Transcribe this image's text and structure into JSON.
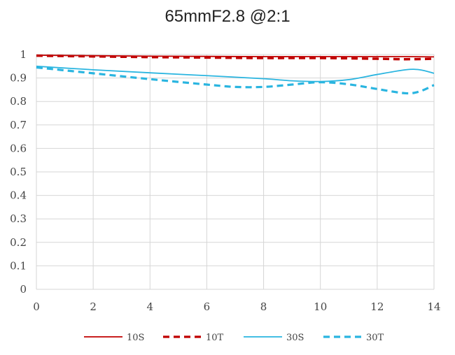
{
  "chart_data": {
    "type": "line",
    "title": "65mmF2.8 @2:1",
    "xlabel": "",
    "ylabel": "",
    "xlim": [
      0,
      14
    ],
    "ylim": [
      0,
      1
    ],
    "xticks": [
      "0",
      "2",
      "4",
      "6",
      "8",
      "10",
      "12",
      "14"
    ],
    "yticks": [
      "0",
      "0.1",
      "0.2",
      "0.3",
      "0.4",
      "0.5",
      "0.6",
      "0.7",
      "0.8",
      "0.9",
      "1"
    ],
    "grid": true,
    "legend_position": "bottom",
    "series": [
      {
        "name": "10S",
        "color": "#c00000",
        "style": "solid",
        "x": [
          0,
          2,
          4,
          6,
          8,
          10,
          12,
          13,
          14
        ],
        "y": [
          0.997,
          0.995,
          0.993,
          0.992,
          0.991,
          0.991,
          0.991,
          0.991,
          0.99
        ]
      },
      {
        "name": "10T",
        "color": "#c00000",
        "style": "dashed",
        "x": [
          0,
          2,
          4,
          6,
          8,
          10,
          12,
          13,
          14
        ],
        "y": [
          0.995,
          0.992,
          0.989,
          0.987,
          0.985,
          0.985,
          0.982,
          0.98,
          0.982
        ]
      },
      {
        "name": "30S",
        "color": "#2ab5e0",
        "style": "solid",
        "x": [
          0,
          2,
          4,
          6,
          8,
          9,
          10,
          11,
          12,
          13,
          13.5,
          14
        ],
        "y": [
          0.95,
          0.935,
          0.922,
          0.91,
          0.897,
          0.888,
          0.885,
          0.893,
          0.915,
          0.935,
          0.935,
          0.92
        ]
      },
      {
        "name": "30T",
        "color": "#2ab5e0",
        "style": "dashed",
        "x": [
          0,
          2,
          4,
          6,
          7,
          8,
          9,
          10,
          11,
          12,
          13,
          13.5,
          14
        ],
        "y": [
          0.945,
          0.92,
          0.895,
          0.872,
          0.862,
          0.862,
          0.872,
          0.882,
          0.873,
          0.853,
          0.835,
          0.843,
          0.87
        ]
      }
    ]
  }
}
